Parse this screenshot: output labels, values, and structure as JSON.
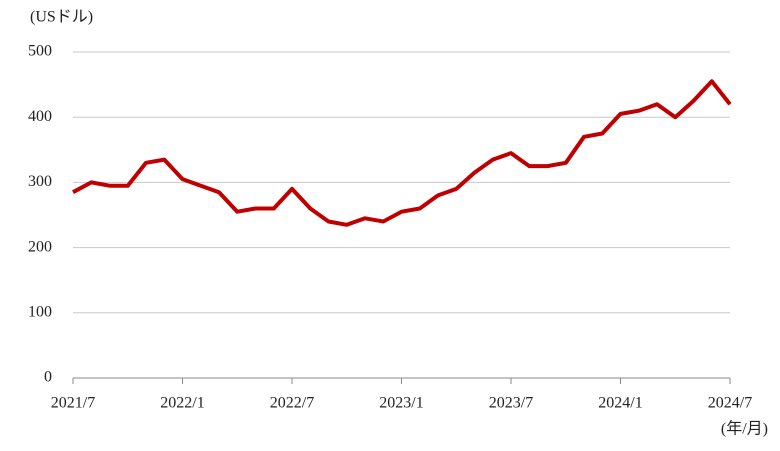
{
  "chart_data": {
    "type": "line",
    "y_unit_label": "(USドル)",
    "x_unit_label": "(年/月)",
    "x": [
      "2021/7",
      null,
      null,
      null,
      null,
      null,
      "2022/1",
      null,
      null,
      null,
      null,
      null,
      "2022/7",
      null,
      null,
      null,
      null,
      null,
      "2023/1",
      null,
      null,
      null,
      null,
      null,
      "2023/7",
      null,
      null,
      null,
      null,
      null,
      "2024/1",
      null,
      null,
      null,
      null,
      null,
      "2024/7"
    ],
    "series": [
      {
        "color": "#c00000",
        "values": [
          285,
          300,
          295,
          295,
          330,
          335,
          305,
          295,
          285,
          255,
          260,
          260,
          290,
          260,
          240,
          235,
          245,
          240,
          255,
          260,
          280,
          290,
          315,
          335,
          345,
          325,
          325,
          330,
          370,
          375,
          405,
          410,
          420,
          400,
          425,
          455,
          420
        ]
      }
    ],
    "ylim": [
      0,
      500
    ],
    "yticks": [
      0,
      100,
      200,
      300,
      400,
      500
    ],
    "grid": true
  }
}
